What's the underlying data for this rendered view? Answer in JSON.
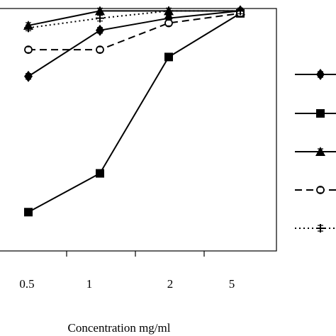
{
  "chart_data": {
    "type": "line",
    "title": "",
    "xlabel": "Concentration mg/ml",
    "ylabel": "",
    "categories": [
      "0.5",
      "1",
      "2",
      "5"
    ],
    "series": [
      {
        "marker": "diamond",
        "dash": "solid",
        "values": [
          0.72,
          0.91,
          0.96,
          0.99
        ]
      },
      {
        "marker": "square",
        "dash": "solid",
        "values": [
          0.16,
          0.32,
          0.8,
          0.98
        ]
      },
      {
        "marker": "triangle",
        "dash": "solid",
        "values": [
          0.93,
          0.99,
          0.99,
          0.99
        ]
      },
      {
        "marker": "circle",
        "dash": "dashed",
        "values": [
          0.83,
          0.83,
          0.94,
          0.98
        ]
      },
      {
        "marker": "plus",
        "dash": "dotted",
        "values": [
          0.92,
          0.96,
          0.99,
          0.99
        ]
      }
    ],
    "ylim": [
      0,
      1.0
    ],
    "legend_position": "right",
    "grid": false,
    "colors": {
      "line": "#000000",
      "frame": "#000000",
      "background": "#ffffff"
    }
  }
}
